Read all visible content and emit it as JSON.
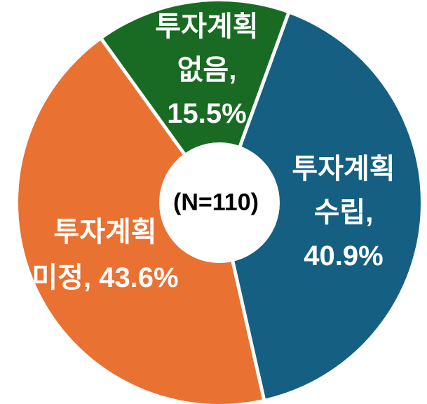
{
  "chart_data": {
    "type": "pie",
    "subtype": "donut",
    "title": "",
    "center_label": "(N=110)",
    "total_n": 110,
    "start_angle_deg": 20,
    "direction": "clockwise",
    "donut_hole_ratio": 0.3,
    "legend_position": "none",
    "grid": false,
    "background_color": "#FFFFFF",
    "separator_color": "#FFFFFF",
    "label_text_color": "#FFFFFF",
    "center_label_color": "#000000",
    "series": [
      {
        "name": "투자계획 수립",
        "value": 40.9,
        "unit": "%",
        "color": "#156082",
        "label": "투자계획 수립, 40.9%",
        "label_lines": [
          "투자계획",
          "수립,",
          "40.9%"
        ]
      },
      {
        "name": "투자계획 미정",
        "value": 43.6,
        "unit": "%",
        "color": "#E97132",
        "label": "투자계획 미정, 43.6%",
        "label_lines": [
          "투자계획",
          "미정, 43.6%"
        ]
      },
      {
        "name": "투자계획 없음",
        "value": 15.5,
        "unit": "%",
        "color": "#196B24",
        "label": "투자계획 없음, 15.5%",
        "label_lines": [
          "투자계획",
          "없음,",
          "15.5%"
        ]
      }
    ]
  }
}
